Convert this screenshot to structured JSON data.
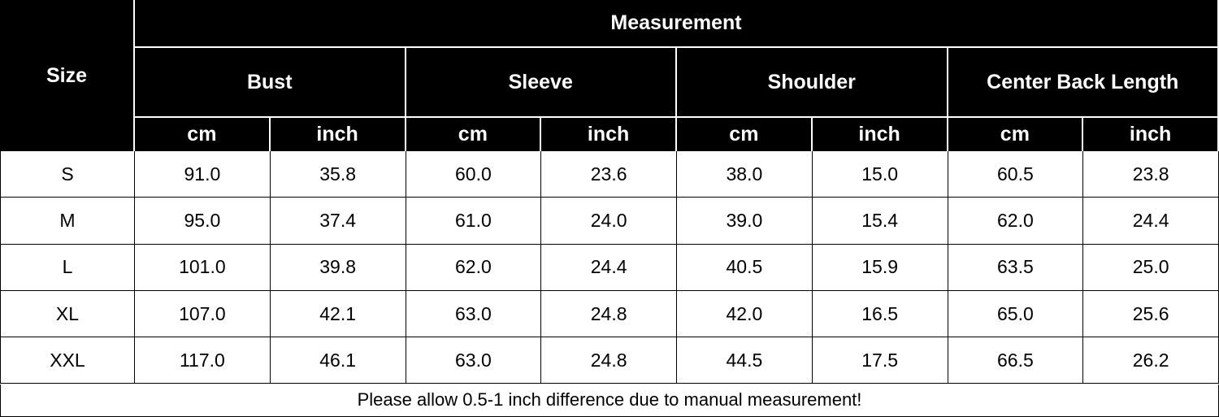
{
  "header": {
    "size": "Size",
    "measurement": "Measurement",
    "groups": [
      "Bust",
      "Sleeve",
      "Shoulder",
      "Center Back Length"
    ],
    "units": [
      "cm",
      "inch",
      "cm",
      "inch",
      "cm",
      "inch",
      "cm",
      "inch"
    ]
  },
  "table": {
    "rows": [
      [
        "S",
        "91.0",
        "35.8",
        "60.0",
        "23.6",
        "38.0",
        "15.0",
        "60.5",
        "23.8"
      ],
      [
        "M",
        "95.0",
        "37.4",
        "61.0",
        "24.0",
        "39.0",
        "15.4",
        "62.0",
        "24.4"
      ],
      [
        "L",
        "101.0",
        "39.8",
        "62.0",
        "24.4",
        "40.5",
        "15.9",
        "63.5",
        "25.0"
      ],
      [
        "XL",
        "107.0",
        "42.1",
        "63.0",
        "24.8",
        "42.0",
        "16.5",
        "65.0",
        "25.6"
      ],
      [
        "XXL",
        "117.0",
        "46.1",
        "63.0",
        "24.8",
        "44.5",
        "17.5",
        "66.5",
        "26.2"
      ]
    ]
  },
  "note": "Please allow 0.5-1 inch difference due to manual measurement!"
}
